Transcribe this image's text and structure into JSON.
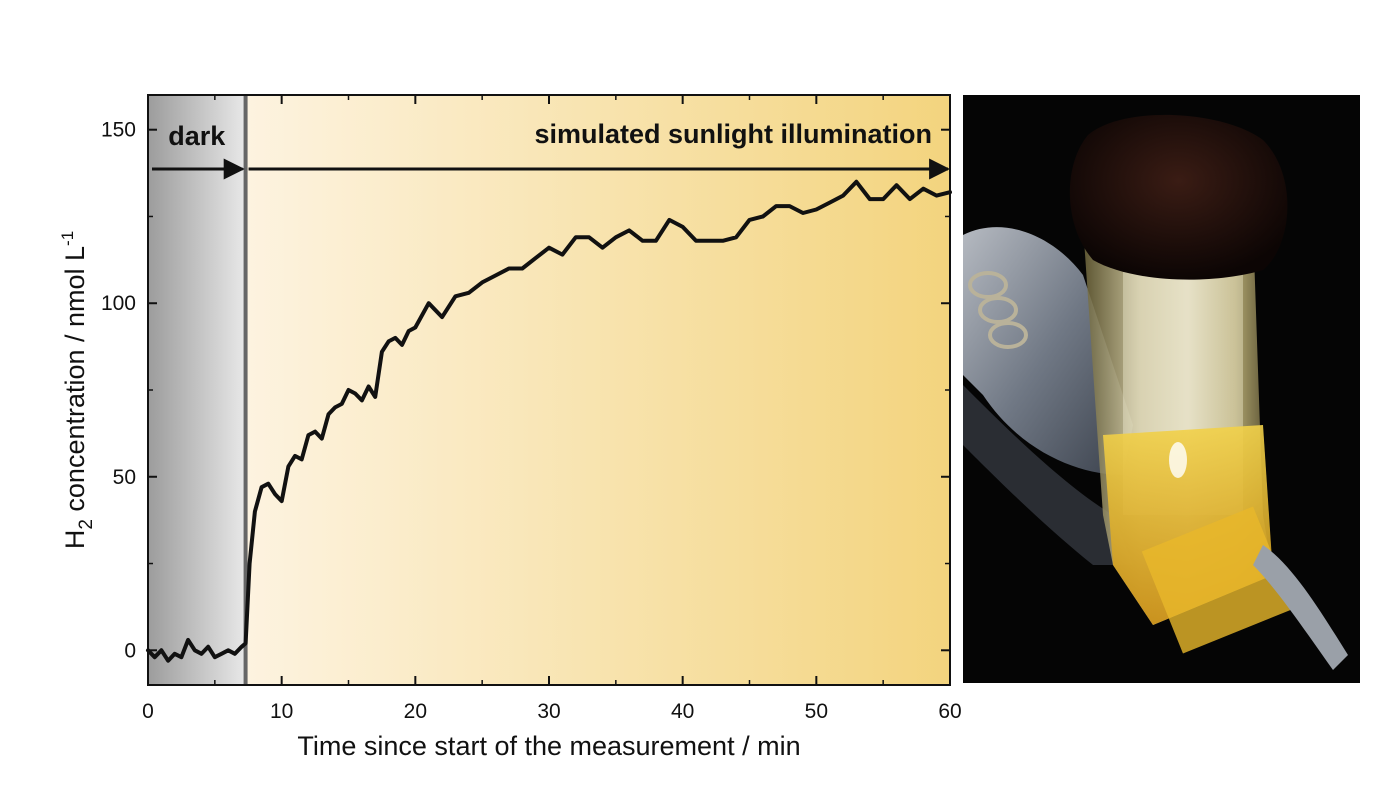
{
  "chart_data": {
    "type": "line",
    "xlabel": "Time since start of the measurement / min",
    "ylabel": {
      "prefix": "H",
      "subscript": "2",
      "main": " concentration / nmol L",
      "superscript": "-1"
    },
    "xlim": [
      0,
      60
    ],
    "ylim": [
      -10,
      160
    ],
    "xticks": [
      0,
      10,
      20,
      30,
      40,
      50,
      60
    ],
    "yticks": [
      0,
      50,
      100,
      150
    ],
    "grid": false,
    "legend": "none",
    "regions": [
      {
        "label": "dark",
        "x_start": 0,
        "x_end": 7.3
      },
      {
        "label": "simulated sunlight illumination",
        "x_start": 7.3,
        "x_end": 60
      }
    ],
    "illumination_onset_x": 7.3,
    "series": [
      {
        "x": [
          0,
          0.5,
          1,
          1.5,
          2,
          2.5,
          3,
          3.5,
          4,
          4.5,
          5,
          5.5,
          6,
          6.5,
          7,
          7.3,
          7.6,
          8,
          8.5,
          9,
          9.5,
          10,
          10.5,
          11,
          11.5,
          12,
          12.5,
          13,
          13.5,
          14,
          14.5,
          15,
          15.5,
          16,
          16.5,
          17,
          17.5,
          18,
          18.5,
          19,
          19.5,
          20,
          21,
          22,
          23,
          24,
          25,
          26,
          27,
          28,
          29,
          30,
          31,
          32,
          33,
          34,
          35,
          36,
          37,
          38,
          39,
          40,
          41,
          42,
          43,
          44,
          45,
          46,
          47,
          48,
          49,
          50,
          51,
          52,
          53,
          54,
          55,
          56,
          57,
          58,
          59,
          60
        ],
        "y": [
          0,
          -2,
          0,
          -3,
          -1,
          -2,
          3,
          0,
          -1,
          1,
          -2,
          -1,
          0,
          -1,
          1,
          2,
          25,
          40,
          47,
          48,
          45,
          43,
          53,
          56,
          55,
          62,
          63,
          61,
          68,
          70,
          71,
          75,
          74,
          72,
          76,
          73,
          86,
          89,
          90,
          88,
          92,
          93,
          100,
          96,
          102,
          103,
          106,
          108,
          110,
          110,
          113,
          116,
          114,
          119,
          119,
          116,
          119,
          121,
          118,
          118,
          124,
          122,
          118,
          118,
          118,
          119,
          124,
          125,
          128,
          128,
          126,
          127,
          129,
          131,
          135,
          130,
          130,
          134,
          130,
          133,
          131,
          132
        ]
      }
    ]
  },
  "photo": {
    "description_icon": "photo-icon"
  }
}
